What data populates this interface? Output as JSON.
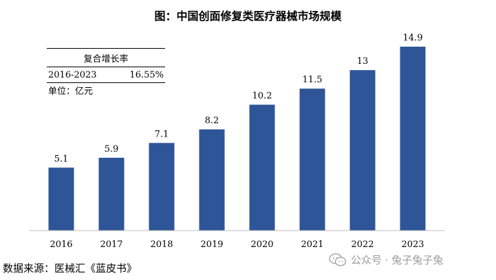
{
  "title": "图：中国创面修复类医疗器械市场规模",
  "cagr_table": {
    "header": "复合增长率",
    "period": "2016-2023",
    "rate": "16.55%"
  },
  "unit": "单位：亿元",
  "source": "数据来源：医械汇《蓝皮书》",
  "watermark": "公众号 · 兔子兔子兔",
  "chart_data": {
    "type": "bar",
    "title": "图：中国创面修复类医疗器械市场规模",
    "xlabel": "",
    "ylabel": "",
    "unit": "亿元",
    "categories": [
      "2016",
      "2017",
      "2018",
      "2019",
      "2020",
      "2021",
      "2022",
      "2023"
    ],
    "values": [
      5.1,
      5.9,
      7.1,
      8.2,
      10.2,
      11.5,
      13,
      14.9
    ],
    "data_labels": [
      "5.1",
      "5.9",
      "7.1",
      "8.2",
      "10.2",
      "11.5",
      "13",
      "14.9"
    ],
    "ylim": [
      0,
      14.9
    ],
    "bar_color": "#2e5597",
    "grid": false,
    "legend": "none"
  }
}
